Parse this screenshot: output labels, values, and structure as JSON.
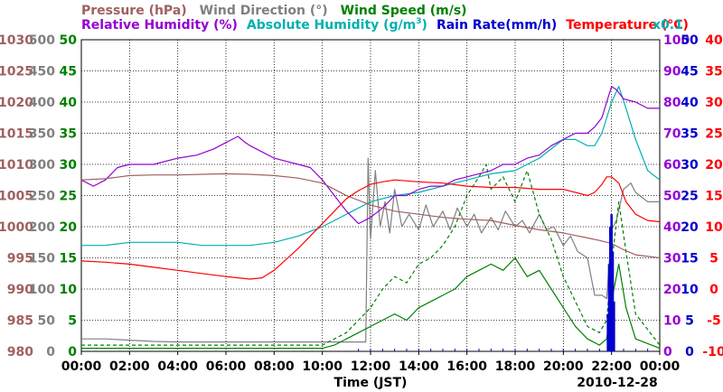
{
  "chart_data": {
    "type": "line",
    "colors": {
      "pressure": "#a06060",
      "wind_direction": "#808080",
      "wind_speed": "#008000",
      "relative_humidity": "#9400d3",
      "absolute_humidity": "#00b0b0",
      "rain_rate": "#0000cc",
      "temperature": "#ff0000",
      "grid": "#000000"
    },
    "legend": {
      "row1": [
        {
          "text": "Pressure (hPa)",
          "color_key": "pressure"
        },
        {
          "text": "Wind Direction (°)",
          "color_key": "wind_direction"
        },
        {
          "text": "Wind Speed (m/s)",
          "color_key": "wind_speed"
        }
      ],
      "row2": [
        {
          "text": "Relative Humidity (%)",
          "color_key": "relative_humidity"
        },
        {
          "text": "Absolute Humidity (g/m",
          "sup": "3",
          "tail": ")",
          "color_key": "absolute_humidity"
        },
        {
          "text": "Rain Rate(mm/h)",
          "color_key": "rain_rate"
        },
        {
          "text": "Temperature (°C)",
          "color_key": "temperature"
        }
      ],
      "scale_note": "x0.1"
    },
    "xlabel": "Time (JST)",
    "date_label": "2010-12-28",
    "x_ticks": [
      "00:00",
      "02:00",
      "04:00",
      "06:00",
      "08:00",
      "10:00",
      "12:00",
      "14:00",
      "16:00",
      "18:00",
      "20:00",
      "22:00",
      "00:00"
    ],
    "x_range_hours": [
      0,
      24
    ],
    "axes": {
      "pressure": {
        "ticks": [
          "1030",
          "1025",
          "1020",
          "1015",
          "1010",
          "1005",
          "1000",
          "995",
          "990",
          "985",
          "980"
        ],
        "range": [
          980,
          1030
        ]
      },
      "wind_direction": {
        "ticks": [
          "500",
          "450",
          "400",
          "350",
          "300",
          "250",
          "200",
          "150",
          "100",
          "50",
          "0"
        ],
        "range": [
          0,
          500
        ]
      },
      "wind_speed": {
        "ticks": [
          "50",
          "45",
          "40",
          "35",
          "30",
          "25",
          "20",
          "15",
          "10",
          "5",
          "0"
        ],
        "range": [
          0,
          50
        ]
      },
      "relative_humidity": {
        "ticks": [
          "100",
          "90",
          "80",
          "70",
          "60",
          "50",
          "40",
          "30",
          "20",
          "10",
          "0"
        ],
        "range": [
          0,
          100
        ]
      },
      "rain_rate": {
        "ticks": [
          "50",
          "45",
          "40",
          "35",
          "30",
          "25",
          "20",
          "15",
          "10",
          "5",
          "0"
        ],
        "range": [
          0,
          50
        ]
      },
      "temperature": {
        "ticks": [
          "40",
          "35",
          "30",
          "25",
          "20",
          "15",
          "10",
          "5",
          "0",
          "-5",
          "-10"
        ],
        "range": [
          -10,
          40
        ]
      }
    },
    "series": [
      {
        "name": "Relative Humidity",
        "color_key": "relative_humidity",
        "axis": "relative_humidity",
        "x": [
          0,
          0.5,
          1,
          1.5,
          2,
          3,
          4,
          4.8,
          5.5,
          6,
          6.5,
          6.8,
          7,
          7.5,
          8,
          8.5,
          9,
          9.5,
          10,
          10.5,
          11,
          11.5,
          12,
          12.5,
          13,
          13.5,
          14,
          14.5,
          15,
          15.5,
          16,
          16.5,
          17,
          17.5,
          18,
          18.5,
          19,
          19.5,
          20,
          20.5,
          21,
          21.3,
          21.6,
          21.8,
          22,
          22.2,
          22.5,
          23,
          23.5,
          24
        ],
        "y": [
          55,
          53,
          55,
          59,
          60,
          60,
          62,
          63,
          65,
          67,
          69,
          67,
          66,
          64,
          62,
          61,
          60,
          59,
          55,
          50,
          45,
          41,
          43,
          46,
          50,
          50,
          52,
          53,
          53,
          55,
          56,
          57,
          58,
          60,
          60,
          62,
          63,
          66,
          68,
          70,
          70,
          72,
          75,
          80,
          85,
          84,
          81,
          80,
          78,
          78
        ]
      },
      {
        "name": "Absolute Humidity",
        "color_key": "absolute_humidity",
        "axis": "relative_humidity",
        "x": [
          0,
          1,
          2,
          3,
          4,
          5,
          6,
          7,
          8,
          9,
          10,
          11,
          12,
          13,
          14,
          15,
          16,
          17,
          18,
          19,
          20,
          20.5,
          21,
          21.3,
          21.6,
          22,
          22.3,
          22.6,
          23,
          23.5,
          24
        ],
        "y": [
          34,
          34,
          35,
          35,
          35,
          34,
          34,
          34,
          35,
          37,
          40,
          44,
          48,
          50,
          51,
          53,
          55,
          57,
          58,
          62,
          68,
          68,
          66,
          66,
          70,
          80,
          85,
          78,
          68,
          58,
          55
        ]
      },
      {
        "name": "Pressure",
        "color_key": "pressure",
        "axis": "pressure",
        "x": [
          0,
          1,
          2,
          3,
          4,
          5,
          6,
          7,
          8,
          9,
          10,
          11,
          12,
          13,
          14,
          15,
          16,
          17,
          18,
          19,
          20,
          20.5,
          21,
          21.5,
          22,
          22.5,
          23,
          24
        ],
        "y": [
          1007.5,
          1007.7,
          1008.2,
          1008.3,
          1008.3,
          1008.4,
          1008.5,
          1008.4,
          1008.2,
          1007.8,
          1007.0,
          1005.0,
          1003.5,
          1002.5,
          1002.0,
          1001.5,
          1001.2,
          1001.0,
          1000.2,
          999.5,
          999.0,
          998.6,
          998.2,
          997.8,
          997.3,
          996.3,
          995.5,
          995.0
        ]
      },
      {
        "name": "Temperature",
        "color_key": "temperature",
        "axis": "temperature",
        "x": [
          0,
          1,
          2,
          3,
          4,
          5,
          6,
          7,
          7.5,
          8,
          9,
          10,
          10.5,
          11,
          11.5,
          12,
          12.5,
          13,
          14,
          15,
          16,
          17,
          18,
          19,
          20,
          20.5,
          21,
          21.3,
          21.6,
          21.8,
          22,
          22.3,
          22.6,
          23,
          23.5,
          24
        ],
        "y": [
          4.5,
          4.3,
          4.0,
          3.5,
          3.0,
          2.5,
          2.0,
          1.6,
          1.8,
          3.0,
          6.5,
          10.5,
          12.5,
          14.5,
          15.8,
          16.8,
          17.2,
          17.5,
          17.2,
          17.0,
          16.5,
          16.3,
          16.3,
          16.0,
          16.0,
          15.5,
          15.0,
          15.5,
          16.8,
          18.0,
          18.0,
          17.0,
          14.0,
          12.0,
          11.0,
          10.8
        ]
      },
      {
        "name": "Wind Direction",
        "color_key": "wind_direction",
        "axis": "wind_direction",
        "x": [
          0,
          1,
          2,
          3,
          4,
          5,
          6,
          7,
          8,
          9,
          10,
          10.5,
          11,
          11.5,
          11.8,
          11.9,
          12,
          12.2,
          12.4,
          12.6,
          12.8,
          13,
          13.3,
          13.6,
          14,
          14.3,
          14.6,
          15,
          15.3,
          15.6,
          16,
          16.3,
          16.6,
          17,
          17.3,
          17.6,
          18,
          18.3,
          18.6,
          19,
          19.3,
          19.6,
          20,
          20.3,
          20.6,
          21,
          21.3,
          21.6,
          21.8,
          22,
          22.2,
          22.5,
          22.8,
          23,
          23.5,
          24
        ],
        "y": [
          20,
          20,
          18,
          16,
          15,
          15,
          15,
          15,
          15,
          15,
          15,
          15,
          15,
          15,
          15,
          310,
          180,
          290,
          200,
          240,
          190,
          260,
          200,
          220,
          195,
          235,
          200,
          225,
          195,
          230,
          200,
          220,
          190,
          215,
          195,
          225,
          200,
          210,
          190,
          220,
          195,
          200,
          170,
          185,
          160,
          150,
          90,
          90,
          85,
          195,
          210,
          260,
          270,
          255,
          240,
          240
        ]
      },
      {
        "name": "Wind Speed (gust)",
        "color_key": "wind_speed",
        "axis": "wind_speed",
        "dashed": true,
        "x": [
          0,
          2,
          4,
          6,
          8,
          9,
          10,
          10.5,
          11,
          11.5,
          12,
          12.5,
          13,
          13.5,
          14,
          14.5,
          15,
          15.5,
          16,
          16.5,
          16.8,
          17,
          17.5,
          18,
          18.5,
          19,
          19.5,
          20,
          20.5,
          21,
          21.5,
          21.8,
          22,
          22.3,
          22.6,
          23,
          24
        ],
        "y": [
          1,
          1,
          1,
          1,
          1,
          1,
          1,
          2,
          3,
          5,
          7,
          10,
          12,
          11,
          14,
          15,
          17,
          20,
          25,
          28,
          30,
          26,
          28,
          24,
          29,
          22,
          18,
          12,
          8,
          4,
          3,
          5,
          14,
          24,
          16,
          6,
          1
        ]
      },
      {
        "name": "Wind Speed",
        "color_key": "wind_speed",
        "axis": "wind_speed",
        "x": [
          0,
          2,
          4,
          6,
          8,
          9,
          10,
          10.5,
          11,
          11.5,
          12,
          12.5,
          13,
          13.5,
          14,
          14.5,
          15,
          15.5,
          16,
          16.5,
          17,
          17.5,
          18,
          18.5,
          19,
          19.5,
          20,
          20.5,
          21,
          21.5,
          21.8,
          22,
          22.3,
          22.6,
          23,
          24
        ],
        "y": [
          0.5,
          0.5,
          0.5,
          0.5,
          0.5,
          0.5,
          0.5,
          1,
          2,
          3,
          4,
          5,
          6,
          5,
          7,
          8,
          9,
          10,
          12,
          13,
          14,
          13,
          15,
          12,
          13,
          10,
          7,
          4,
          2,
          1,
          2,
          8,
          14,
          7,
          2,
          0.5
        ]
      },
      {
        "name": "Rain Rate",
        "color_key": "rain_rate",
        "axis": "rain_rate",
        "bars": true,
        "x": [
          21.85,
          21.9,
          21.95,
          22.0,
          22.05,
          22.1
        ],
        "y": [
          6,
          14,
          20,
          22,
          16,
          8
        ]
      }
    ]
  }
}
